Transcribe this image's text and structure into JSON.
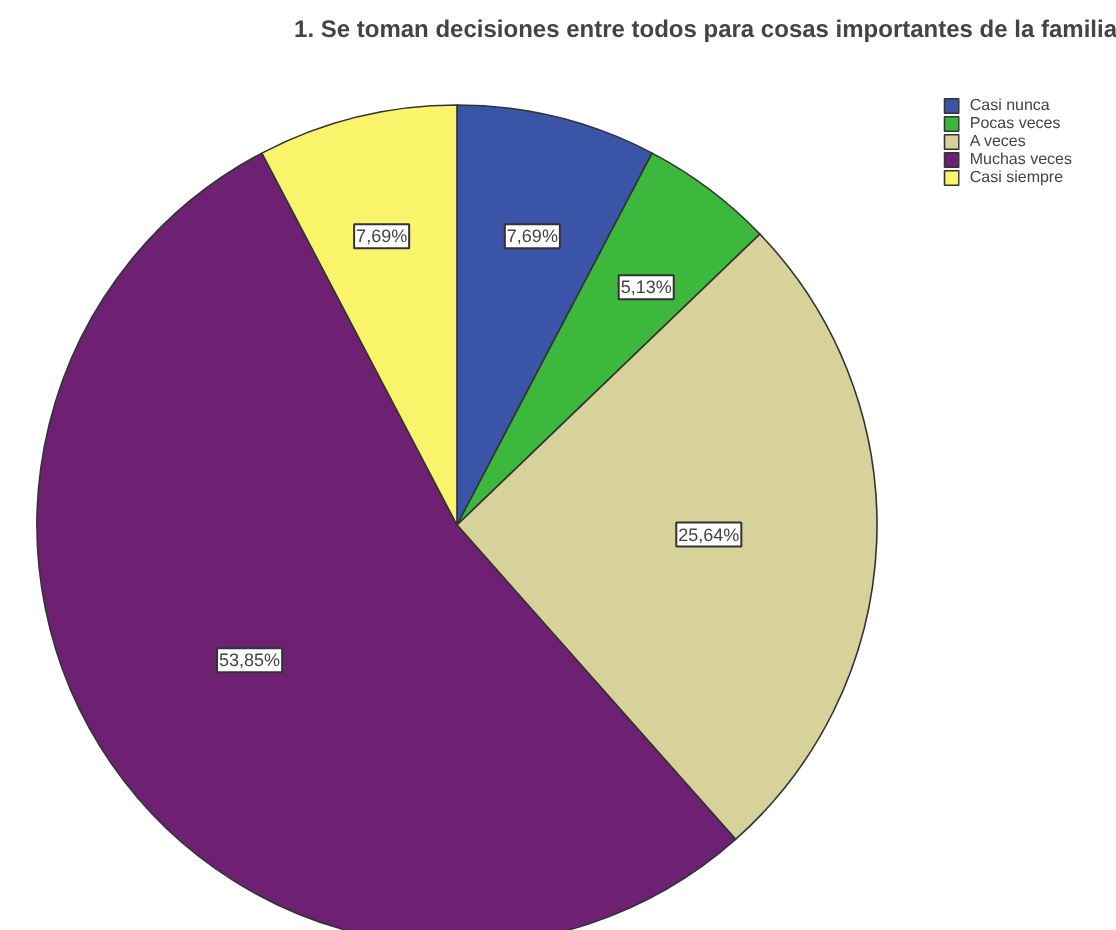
{
  "chart_data": {
    "type": "pie",
    "title": "1. Se toman decisiones entre todos para cosas importantes de la familia",
    "categories": [
      "Casi nunca",
      "Pocas veces",
      "A veces",
      "Muchas veces",
      "Casi siempre"
    ],
    "values": [
      7.69,
      5.13,
      25.64,
      53.85,
      7.69
    ],
    "colors": [
      "#3a55a8",
      "#3cb93c",
      "#d6d29a",
      "#6e2173",
      "#f9f46a"
    ],
    "value_labels": [
      "7,69%",
      "5,13%",
      "25,64%",
      "53,85%",
      "7,69%"
    ],
    "legend": "top right"
  }
}
